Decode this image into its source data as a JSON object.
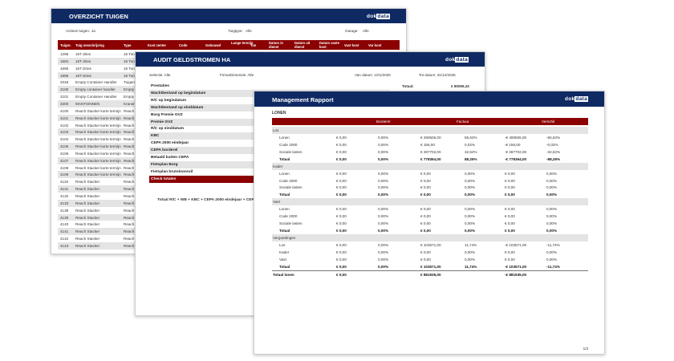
{
  "overzicht": {
    "title": "OVERZICHT TUIGEN",
    "logo": "dokdata",
    "filters": [
      {
        "label": "Actieve tuigen:",
        "value": "Ja"
      },
      {
        "label": "Tuigtype:",
        "value": "Alle"
      },
      {
        "label": "Garage:",
        "value": "Alle"
      }
    ],
    "columns": [
      "Tuignr.",
      "Tuig omschrijving",
      "Type",
      "Kost center",
      "Code",
      "Gebouwd",
      "Lange termijn",
      "Ton",
      "Datum in dienst",
      "Datum uit dienst",
      "Datum vaste kost",
      "Vast kost",
      "Var kost"
    ],
    "rows": [
      [
        "1295",
        "16T dries",
        "16 Ton"
      ],
      [
        "1694",
        "16T dries",
        "16 Ton"
      ],
      [
        "1695",
        "16T Dries",
        "16 Ton"
      ],
      [
        "1895",
        "18T Dries",
        "18 Ton"
      ],
      [
        "2048",
        "Empty Container Handler",
        "Tuigen"
      ],
      [
        "2100",
        "Empty container handler",
        "Empty"
      ],
      [
        "2101",
        "Empty Container Handler",
        "Empty"
      ],
      [
        "3200",
        "MANTSINNEN",
        "Kranen"
      ],
      [
        "4100",
        "Reach Stacker korte termijn",
        "Reach"
      ],
      [
        "4101",
        "Reach Stacker korte termijn",
        "Reach"
      ],
      [
        "4102",
        "Reach Stacker korte termijn",
        "Reach"
      ],
      [
        "4103",
        "Reach Stacker korte termijn",
        "Reach"
      ],
      [
        "4104",
        "Reach Stacker korte termijn",
        "Reach"
      ],
      [
        "4105",
        "Reach Stacker korte termijn",
        "Reach"
      ],
      [
        "4106",
        "Reach Stacker korte termijn",
        "Reach"
      ],
      [
        "4107",
        "Reach Stacker korte termijn",
        "Reach"
      ],
      [
        "4108",
        "Reach Stacker korte termijn",
        "Reach"
      ],
      [
        "4109",
        "Reach Stacker korte termijn",
        "Reach"
      ],
      [
        "4118",
        "Reach Stacker",
        "Reach"
      ],
      [
        "4131",
        "Reach Stacker",
        "Reach"
      ],
      [
        "4132",
        "Reach Stacker",
        "Reach"
      ],
      [
        "4133",
        "Reach Stacker",
        "Reach"
      ],
      [
        "4138",
        "Reach Stacker",
        "Reach"
      ],
      [
        "4139",
        "Reach Stacker",
        "Reach"
      ],
      [
        "4140",
        "Reach Stacker",
        "Reach"
      ],
      [
        "4141",
        "Reach Stacker",
        "Reach"
      ],
      [
        "4142",
        "Reach Stacker",
        "Reach"
      ],
      [
        "4143",
        "Reach Stacker",
        "Reach"
      ]
    ]
  },
  "audit": {
    "title": "AUDIT GELDSTROMEN HA",
    "logo": "dokdata",
    "filters": [
      "Selectie: Alle",
      "Firma/Dimensie: Alle",
      "Van datum: 1/01/2025",
      "Tot datum: 31/12/2025"
    ],
    "total_label": "Totaal:",
    "total_value": "€ 80006,32",
    "rows": [
      "Prestaties",
      "Wachtbestand op begindatum",
      "R/C op begindatum",
      "Wachtbestand op einddatum",
      "Borg Premie GVZ",
      "Premie GVZ",
      "R/C op einddatum",
      "KBC",
      "CEPA 2000 eindejaar",
      "CEPA borderel",
      "Betaald buiten CEPA",
      "Fietsplan Borg",
      "Fietsplan brutoloonruil",
      "Check totalen"
    ],
    "formula": "Totaal R/C + WB + KBC + CEPA 2000 eindejaar + CEPA"
  },
  "management": {
    "title": "Management Rapport",
    "logo": "dokdata",
    "section": "LONEN",
    "columns": [
      "Borderel",
      "Factuur",
      "Verschil"
    ],
    "groups": [
      {
        "name": "Los",
        "rows": [
          [
            "Lonen",
            "€ 0,00",
            "0,00%",
            "€ 490506,00",
            "55,62%",
            "-€ 490506,00",
            "-55,62%"
          ],
          [
            "Code 2000",
            "€ 0,00",
            "0,00%",
            "€ 156,00",
            "0,02%",
            "-€ 156,00",
            "-0,02%"
          ],
          [
            "Sociale lasten",
            "€ 0,00",
            "0,00%",
            "€ 287702,00",
            "32,62%",
            "-€ 287702,00",
            "-32,62%"
          ],
          [
            "Totaal",
            "€ 0,00",
            "0,00%",
            "€ 778364,00",
            "88,26%",
            "-€ 778364,00",
            "-88,26%"
          ]
        ]
      },
      {
        "name": "Kader",
        "rows": [
          [
            "Lonen",
            "€ 0,00",
            "0,00%",
            "€ 0,00",
            "0,00%",
            "€ 0,00",
            "0,00%"
          ],
          [
            "Code 2000",
            "€ 0,00",
            "0,00%",
            "€ 0,00",
            "0,00%",
            "€ 0,00",
            "0,00%"
          ],
          [
            "Sociale lasten",
            "€ 0,00",
            "0,00%",
            "€ 0,00",
            "0,00%",
            "€ 0,00",
            "0,00%"
          ],
          [
            "Totaal",
            "€ 0,00",
            "0,00%",
            "€ 0,00",
            "0,00%",
            "€ 0,00",
            "0,00%"
          ]
        ]
      },
      {
        "name": "Vast",
        "rows": [
          [
            "Lonen",
            "€ 0,00",
            "0,00%",
            "€ 0,00",
            "0,00%",
            "€ 0,00",
            "0,00%"
          ],
          [
            "Code 2000",
            "€ 0,00",
            "0,00%",
            "€ 0,00",
            "0,00%",
            "€ 0,00",
            "0,00%"
          ],
          [
            "Sociale lasten",
            "€ 0,00",
            "0,00%",
            "€ 0,00",
            "0,00%",
            "€ 0,00",
            "0,00%"
          ],
          [
            "Totaal",
            "€ 0,00",
            "0,00%",
            "€ 0,00",
            "0,00%",
            "€ 0,00",
            "0,00%"
          ]
        ]
      },
      {
        "name": "Vergoedingen",
        "rows": [
          [
            "Los",
            "€ 0,00",
            "0,00%",
            "€ 103571,00",
            "11,74%",
            "-€ 103571,00",
            "-11,74%"
          ],
          [
            "Kader",
            "€ 0,00",
            "0,00%",
            "€ 0,00",
            "0,00%",
            "€ 0,00",
            "0,00%"
          ],
          [
            "Vast",
            "€ 0,00",
            "0,00%",
            "€ 0,00",
            "0,00%",
            "€ 0,00",
            "0,00%"
          ],
          [
            "Totaal",
            "€ 0,00",
            "0,00%",
            "€ 103571,00",
            "11,74%",
            "-€ 103571,00",
            "-11,74%"
          ]
        ]
      }
    ],
    "grand_total": [
      "Totaal lonen",
      "€ 0,00",
      "",
      "€ 881935,00",
      "",
      "-€ 881935,00",
      ""
    ],
    "page": "1/3"
  }
}
